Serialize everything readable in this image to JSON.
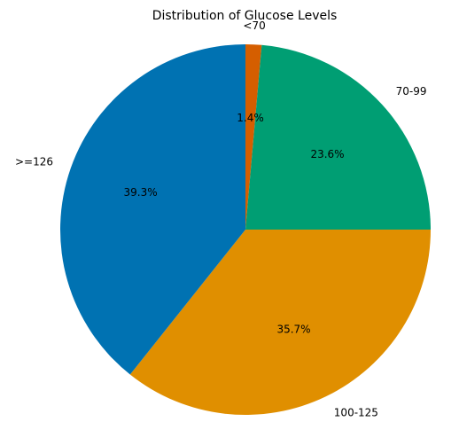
{
  "chart_data": {
    "type": "pie",
    "title": "Distribution of Glucose Levels",
    "start_angle_deg": 90,
    "direction": "clockwise",
    "slices": [
      {
        "label": "<70",
        "value": 1.4,
        "pct_label": "1.4%",
        "color": "#d55e00"
      },
      {
        "label": "70-99",
        "value": 23.6,
        "pct_label": "23.6%",
        "color": "#009e73"
      },
      {
        "label": "100-125",
        "value": 35.7,
        "pct_label": "35.7%",
        "color": "#e08f00"
      },
      {
        "label": ">=126",
        "value": 39.3,
        "pct_label": "39.3%",
        "color": "#0072b2"
      }
    ]
  }
}
